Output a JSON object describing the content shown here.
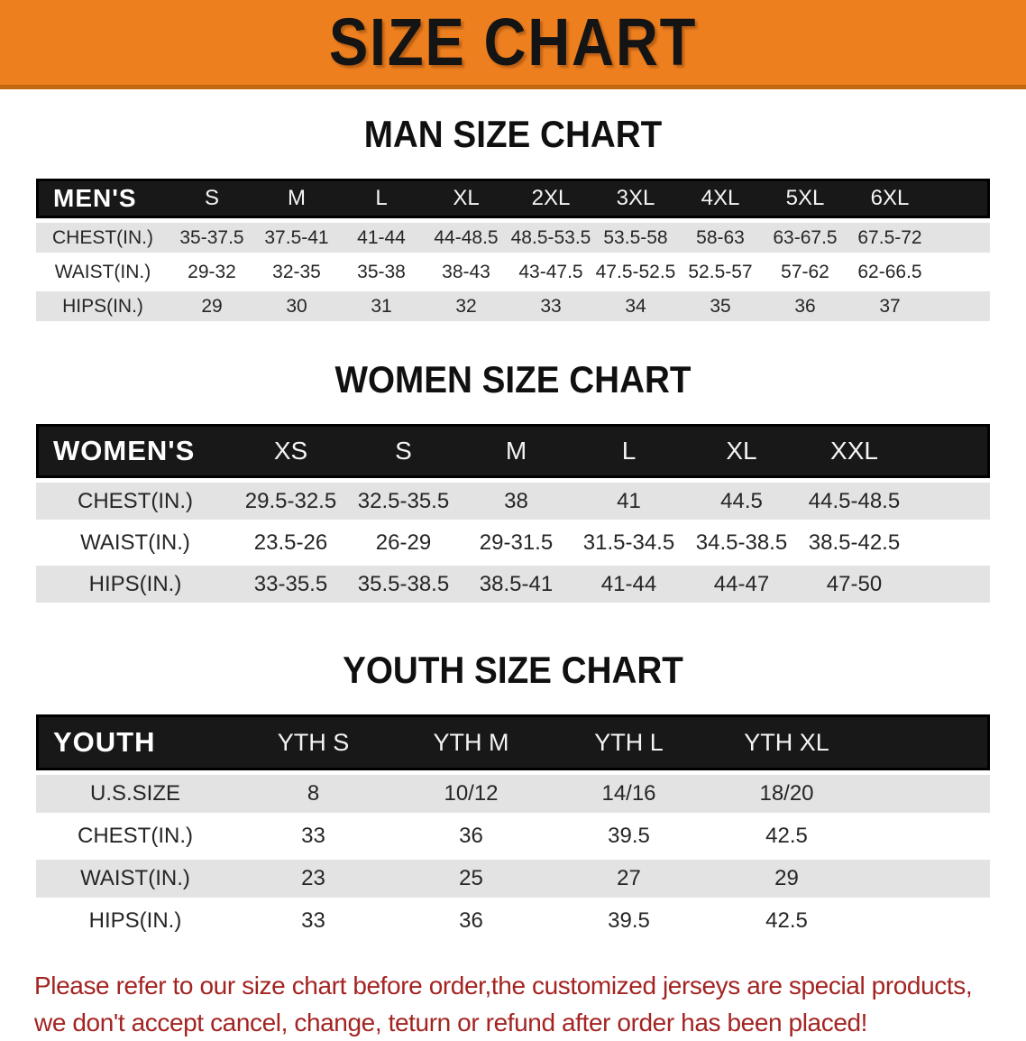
{
  "banner": {
    "title": "SIZE CHART"
  },
  "colors": {
    "banner_bg": "#ee7f1f",
    "banner_edge": "#c2670e",
    "table_header_bar": "#181818",
    "row_alternate": "#e3e3e3",
    "footnote_text": "#a32422"
  },
  "sections": [
    {
      "heading": "MAN SIZE CHART",
      "table": {
        "header_label": "MEN'S",
        "columns": [
          "S",
          "M",
          "L",
          "XL",
          "2XL",
          "3XL",
          "4XL",
          "5XL",
          "6XL"
        ],
        "rows": [
          {
            "label": "CHEST(IN.)",
            "values": [
              "35-37.5",
              "37.5-41",
              "41-44",
              "44-48.5",
              "48.5-53.5",
              "53.5-58",
              "58-63",
              "63-67.5",
              "67.5-72"
            ]
          },
          {
            "label": "WAIST(IN.)",
            "values": [
              "29-32",
              "32-35",
              "35-38",
              "38-43",
              "43-47.5",
              "47.5-52.5",
              "52.5-57",
              "57-62",
              "62-66.5"
            ]
          },
          {
            "label": "HIPS(IN.)",
            "values": [
              "29",
              "30",
              "31",
              "32",
              "33",
              "34",
              "35",
              "36",
              "37"
            ]
          }
        ]
      }
    },
    {
      "heading": "WOMEN SIZE CHART",
      "table": {
        "header_label": "WOMEN'S",
        "columns": [
          "XS",
          "S",
          "M",
          "L",
          "XL",
          "XXL"
        ],
        "rows": [
          {
            "label": "CHEST(IN.)",
            "values": [
              "29.5-32.5",
              "32.5-35.5",
              "38",
              "41",
              "44.5",
              "44.5-48.5"
            ]
          },
          {
            "label": "WAIST(IN.)",
            "values": [
              "23.5-26",
              "26-29",
              "29-31.5",
              "31.5-34.5",
              "34.5-38.5",
              "38.5-42.5"
            ]
          },
          {
            "label": "HIPS(IN.)",
            "values": [
              "33-35.5",
              "35.5-38.5",
              "38.5-41",
              "41-44",
              "44-47",
              "47-50"
            ]
          }
        ]
      }
    },
    {
      "heading": "YOUTH SIZE CHART",
      "table": {
        "header_label": "YOUTH",
        "columns": [
          "YTH S",
          "YTH M",
          "YTH L",
          "YTH XL"
        ],
        "rows": [
          {
            "label": "U.S.SIZE",
            "values": [
              "8",
              "10/12",
              "14/16",
              "18/20"
            ]
          },
          {
            "label": "CHEST(IN.)",
            "values": [
              "33",
              "36",
              "39.5",
              "42.5"
            ]
          },
          {
            "label": "WAIST(IN.)",
            "values": [
              "23",
              "25",
              "27",
              "29"
            ]
          },
          {
            "label": "HIPS(IN.)",
            "values": [
              "33",
              "36",
              "39.5",
              "42.5"
            ]
          }
        ]
      }
    }
  ],
  "footnote": {
    "lines": [
      "Please refer to our size chart before order,the customized jerseys are special products,",
      "we don't accept cancel, change, teturn or refund after order has been placed!"
    ]
  }
}
